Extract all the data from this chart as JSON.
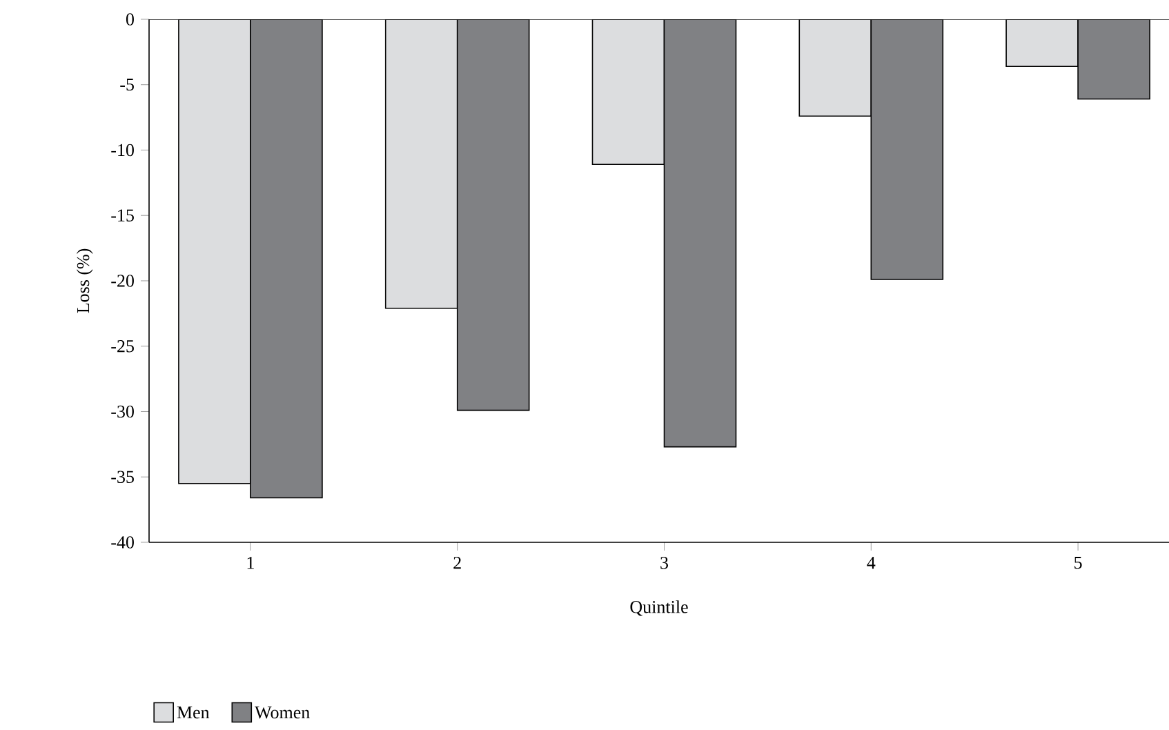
{
  "chart_data": {
    "type": "bar",
    "xlabel": "Quintile",
    "ylabel": "Loss (%)",
    "categories": [
      "1",
      "2",
      "3",
      "4",
      "5"
    ],
    "series": [
      {
        "name": "Men",
        "color": "#dcdddf",
        "values": [
          -35.5,
          -22.1,
          -11.1,
          -7.4,
          -3.6
        ]
      },
      {
        "name": "Women",
        "color": "#808184",
        "values": [
          -36.6,
          -29.9,
          -32.7,
          -19.9,
          -6.1
        ]
      }
    ],
    "ylim": [
      -40,
      0
    ],
    "yticks": [
      -40,
      -35,
      -30,
      -25,
      -20,
      -15,
      -10,
      -5,
      0
    ],
    "grid": false,
    "legend": "bottom left"
  }
}
